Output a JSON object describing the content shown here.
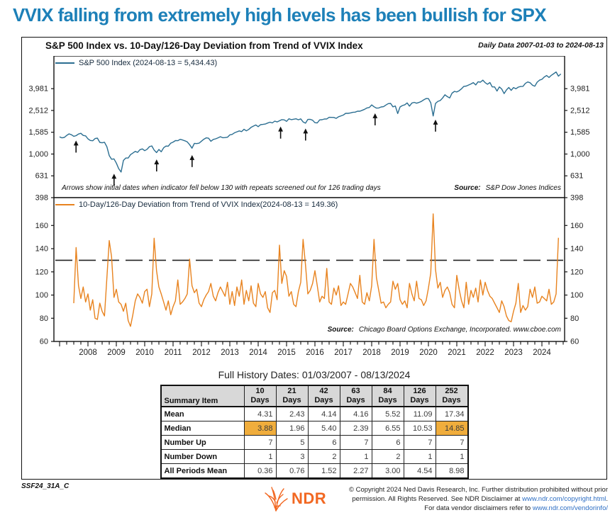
{
  "page_title": "VVIX falling from extremely high levels has been bullish for SPX",
  "header": {
    "chart_title": "S&P 500 Index vs. 10-Day/126-Day Deviation from Trend of VVIX Index",
    "daily_data": "Daily Data 2007-01-03 to 2024-08-13"
  },
  "top_panel": {
    "legend": "S&P 500 Index (2024-08-13 = 5,434.43)",
    "footnote": "Arrows show initial dates when indicator fell below 130 with repeats screened out for 126 trading days",
    "source_label": "Source:",
    "source": "S&P Dow Jones Indices"
  },
  "bottom_panel": {
    "legend": "10-Day/126-Day Deviation from Trend of VVIX Index(2024-08-13 = 149.36)",
    "source_label": "Source:",
    "source": "Chicago Board Options Exchange, Incorporated. www.cboe.com"
  },
  "colors": {
    "title_blue": "#1d80b8",
    "sp500_line": "#2b6e91",
    "vvix_line": "#e8831f",
    "threshold_line": "#222222",
    "table_header_bg": "#d8d8d8",
    "table_highlight": "#f0ad3c",
    "link_blue": "#2e6fc4",
    "logo_orange": "#f26822"
  },
  "chart_data": [
    {
      "type": "line",
      "panel": "top",
      "title": "S&P 500 Index",
      "yscale": "log",
      "ylim": [
        398,
        7943
      ],
      "yticks": [
        {
          "v": 3981,
          "l": "3,981"
        },
        {
          "v": 2512,
          "l": "2,512"
        },
        {
          "v": 1585,
          "l": "1,585"
        },
        {
          "v": 1000,
          "l": "1,000"
        },
        {
          "v": 631,
          "l": "631"
        },
        {
          "v": 398,
          "l": "398"
        }
      ],
      "xlim": [
        2006.8,
        2024.8
      ],
      "series": [
        {
          "name": "S&P 500 Index",
          "last": "2024-08-13 = 5,434.43",
          "last_value": 5434.43,
          "color": "#2b6e91",
          "x_start": 2007.0,
          "x_step": 0.0833333,
          "values": [
            1438,
            1407,
            1421,
            1482,
            1531,
            1503,
            1455,
            1474,
            1527,
            1549,
            1481,
            1468,
            1379,
            1331,
            1323,
            1386,
            1400,
            1280,
            1267,
            1283,
            1166,
            969,
            896,
            903,
            826,
            735,
            683,
            873,
            919,
            919,
            987,
            1021,
            1057,
            1036,
            1096,
            1115,
            1074,
            1104,
            1169,
            1187,
            1089,
            1031,
            1102,
            1049,
            1141,
            1183,
            1181,
            1258,
            1286,
            1327,
            1326,
            1364,
            1345,
            1321,
            1292,
            1219,
            1131,
            1253,
            1247,
            1258,
            1312,
            1366,
            1408,
            1398,
            1310,
            1362,
            1379,
            1407,
            1441,
            1412,
            1416,
            1426,
            1498,
            1515,
            1569,
            1598,
            1631,
            1606,
            1686,
            1633,
            1682,
            1757,
            1806,
            1848,
            1783,
            1859,
            1872,
            1884,
            1924,
            1960,
            1931,
            2003,
            1972,
            2018,
            2068,
            2059,
            1995,
            2105,
            2068,
            2086,
            2107,
            2063,
            2104,
            1972,
            1920,
            2079,
            2080,
            2044,
            1940,
            1932,
            2060,
            2065,
            2097,
            2099,
            2174,
            2171,
            2168,
            2126,
            2199,
            2239,
            2279,
            2364,
            2363,
            2384,
            2412,
            2423,
            2470,
            2472,
            2519,
            2575,
            2648,
            2674,
            2824,
            2714,
            2641,
            2648,
            2705,
            2718,
            2816,
            2902,
            2914,
            2712,
            2760,
            2351,
            2704,
            2784,
            2834,
            2946,
            2752,
            2942,
            2980,
            2926,
            2977,
            3038,
            3141,
            3231,
            3226,
            2954,
            2237,
            2912,
            3044,
            3100,
            3271,
            3500,
            3363,
            3270,
            3622,
            3756,
            3714,
            3811,
            3973,
            4181,
            4204,
            4298,
            4395,
            4523,
            4308,
            4605,
            4567,
            4766,
            4516,
            4374,
            4530,
            4132,
            4132,
            3785,
            4130,
            3955,
            3586,
            3872,
            4080,
            3840,
            4077,
            3970,
            4109,
            4169,
            4180,
            4450,
            4589,
            4508,
            4288,
            4194,
            4568,
            4770,
            4846,
            5096,
            5254,
            5036,
            5278,
            5460,
            5667,
            5186,
            5434
          ]
        }
      ],
      "arrows": [
        {
          "x": 2007.58,
          "y": 1310
        },
        {
          "x": 2008.92,
          "y": 650
        },
        {
          "x": 2010.42,
          "y": 880
        },
        {
          "x": 2011.67,
          "y": 965
        },
        {
          "x": 2014.79,
          "y": 1760
        },
        {
          "x": 2015.67,
          "y": 1690
        },
        {
          "x": 2018.12,
          "y": 2330
        },
        {
          "x": 2020.25,
          "y": 2040
        }
      ]
    },
    {
      "type": "line",
      "panel": "bottom",
      "title": "10-Day/126-Day Deviation from Trend of VVIX Index",
      "yscale": "linear",
      "ylim": [
        60,
        184
      ],
      "yticks": [
        {
          "v": 160,
          "l": "160"
        },
        {
          "v": 140,
          "l": "140"
        },
        {
          "v": 120,
          "l": "120"
        },
        {
          "v": 100,
          "l": "100"
        },
        {
          "v": 80,
          "l": "80"
        },
        {
          "v": 60,
          "l": "60"
        }
      ],
      "reference_line": 130,
      "xlim": [
        2006.8,
        2024.8
      ],
      "xtick_labels": [
        "2008",
        "2009",
        "2010",
        "2011",
        "2012",
        "2013",
        "2014",
        "2015",
        "2016",
        "2017",
        "2018",
        "2019",
        "2020",
        "2021",
        "2022",
        "2023",
        "2024"
      ],
      "series": [
        {
          "name": "10-Day/126-Day Deviation from Trend of VVIX Index",
          "last": "2024-08-13 = 149.36",
          "last_value": 149.36,
          "color": "#e8831f",
          "x_start": 2007.5,
          "x_step": 0.0833333,
          "values": [
            93,
            141,
            108,
            97,
            107,
            94,
            101,
            87,
            96,
            80,
            79,
            93,
            86,
            82,
            115,
            147,
            133,
            98,
            105,
            94,
            92,
            86,
            93,
            78,
            73,
            83,
            95,
            101,
            98,
            93,
            103,
            105,
            90,
            101,
            149,
            121,
            107,
            101,
            94,
            87,
            95,
            83,
            90,
            95,
            113,
            92,
            94,
            97,
            101,
            131,
            108,
            102,
            105,
            93,
            90,
            96,
            100,
            103,
            110,
            99,
            95,
            102,
            107,
            103,
            99,
            111,
            92,
            103,
            91,
            107,
            99,
            113,
            92,
            104,
            95,
            108,
            93,
            90,
            110,
            101,
            98,
            103,
            89,
            85,
            102,
            104,
            96,
            143,
            110,
            121,
            116,
            99,
            103,
            92,
            90,
            103,
            111,
            148,
            126,
            101,
            104,
            110,
            121,
            108,
            94,
            99,
            97,
            123,
            94,
            92,
            106,
            100,
            108,
            91,
            94,
            92,
            101,
            110,
            107,
            102,
            97,
            117,
            94,
            92,
            102,
            95,
            108,
            148,
            115,
            104,
            93,
            94,
            89,
            92,
            94,
            112,
            105,
            110,
            96,
            92,
            95,
            89,
            110,
            101,
            95,
            112,
            97,
            96,
            91,
            95,
            106,
            119,
            170,
            122,
            106,
            111,
            98,
            104,
            107,
            102,
            92,
            89,
            117,
            105,
            95,
            89,
            111,
            92,
            104,
            98,
            106,
            94,
            113,
            100,
            111,
            104,
            99,
            97,
            93,
            89,
            85,
            95,
            90,
            82,
            78,
            77,
            86,
            93,
            110,
            85,
            91,
            87,
            90,
            105,
            98,
            107,
            93,
            94,
            99,
            97,
            95,
            105,
            92,
            94,
            101,
            149.36
          ]
        }
      ]
    }
  ],
  "table": {
    "title": "Full History Dates: 01/03/2007 - 08/13/2024",
    "item_header": "Summary Item",
    "columns": [
      "10",
      "21",
      "42",
      "63",
      "84",
      "126",
      "252"
    ],
    "days_label": "Days",
    "rows": [
      {
        "label": "Mean",
        "values": [
          "4.31",
          "2.43",
          "4.14",
          "4.16",
          "5.52",
          "11.09",
          "17.34"
        ],
        "highlight": []
      },
      {
        "label": "Median",
        "values": [
          "3.88",
          "1.96",
          "5.40",
          "2.39",
          "6.55",
          "10.53",
          "14.85"
        ],
        "highlight": [
          0,
          6
        ]
      },
      {
        "label": "Number Up",
        "values": [
          "7",
          "5",
          "6",
          "7",
          "6",
          "7",
          "7"
        ],
        "highlight": []
      },
      {
        "label": "Number Down",
        "values": [
          "1",
          "3",
          "2",
          "1",
          "2",
          "1",
          "1"
        ],
        "highlight": []
      },
      {
        "label": "All Periods Mean",
        "values": [
          "0.36",
          "0.76",
          "1.52",
          "2.27",
          "3.00",
          "4.54",
          "8.98"
        ],
        "highlight": []
      }
    ]
  },
  "footer": {
    "doc_id": "SSF24_31A_C",
    "logo_text": "NDR",
    "copyright_line1": "© Copyright 2024 Ned Davis Research, Inc. Further distribution prohibited without prior",
    "copyright_line2_prefix": "permission. All Rights Reserved. See NDR Disclaimer at ",
    "link_copyright": "www.ndr.com/copyright.html",
    "copyright_line2_suffix": ".",
    "copyright_line3_prefix": "For data vendor disclaimers refer to ",
    "link_vendor": "www.ndr.com/vendorinfo/"
  }
}
